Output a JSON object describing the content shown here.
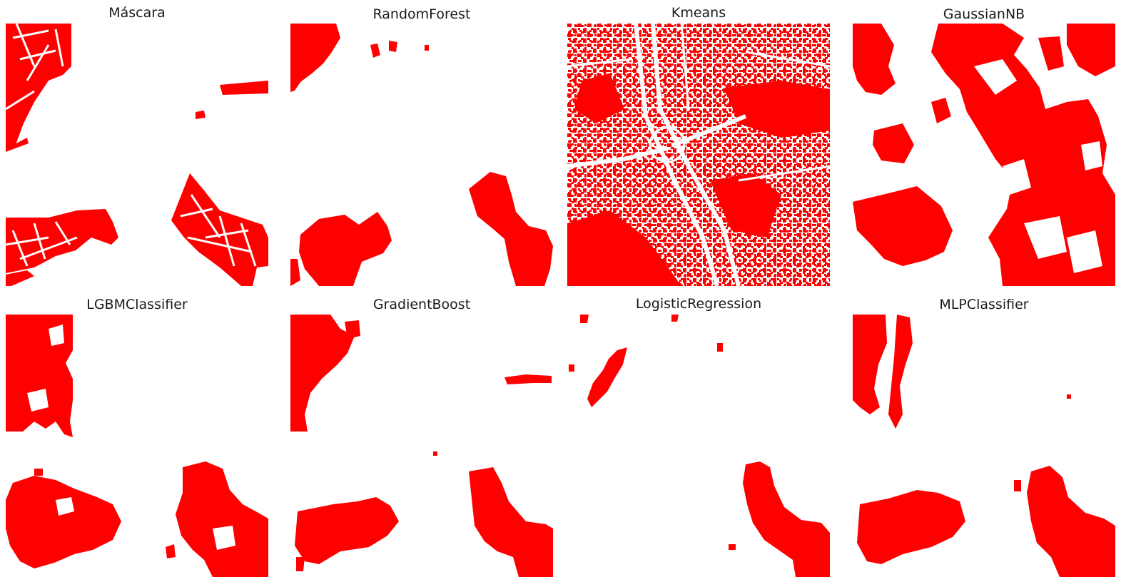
{
  "figure": {
    "mask_color": "#ff0000",
    "background_color": "#ffffff"
  },
  "chart_data": [
    {
      "type": "image",
      "title": "Máscara"
    },
    {
      "type": "image",
      "title": "RandomForest"
    },
    {
      "type": "image",
      "title": "Kmeans"
    },
    {
      "type": "image",
      "title": "GaussianNB"
    },
    {
      "type": "image",
      "title": "LGBMClassifier"
    },
    {
      "type": "image",
      "title": "GradientBoost"
    },
    {
      "type": "image",
      "title": "LogisticRegression"
    },
    {
      "type": "image",
      "title": "MLPClassifier"
    }
  ]
}
